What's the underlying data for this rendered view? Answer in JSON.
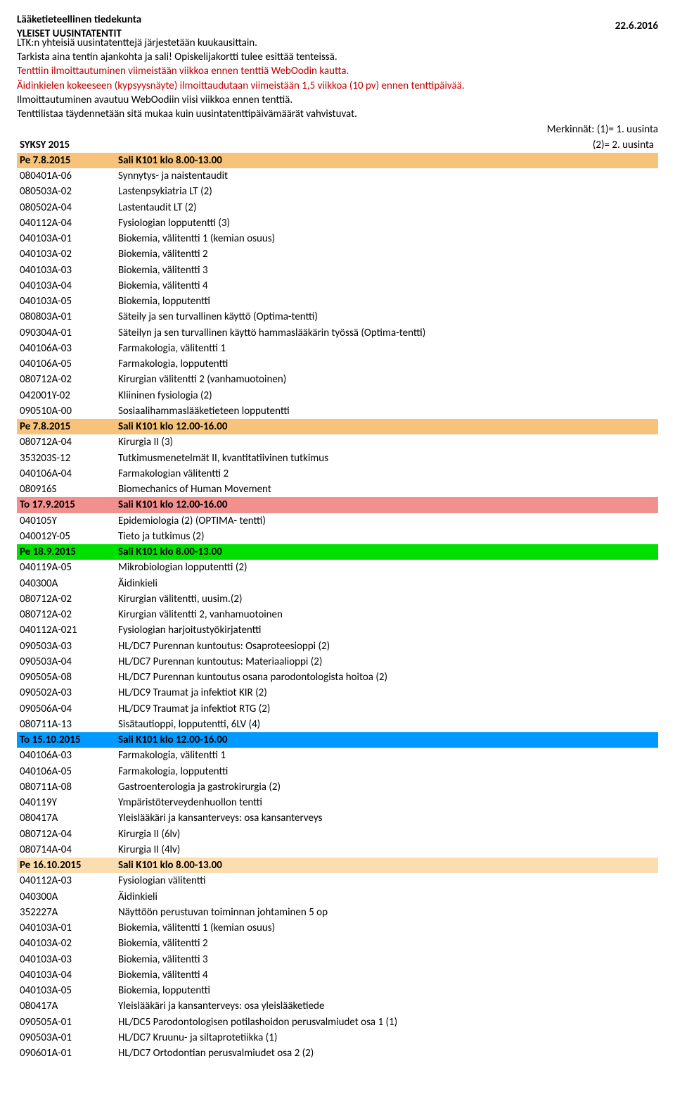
{
  "header": {
    "faculty": "Lääketieteellinen tiedekunta",
    "title": "YLEISET UUSINTATENTIT",
    "date": "22.6.2016",
    "lines": [
      {
        "text": "LTK:n yhteisiä uusintatenttejä järjestetään kuukausittain.",
        "color": "#000000"
      },
      {
        "text": "Tarkista aina tentin ajankohta ja sali! Opiskelijakortti tulee esittää tenteissä.",
        "color": "#000000"
      },
      {
        "text": "Tenttiin ilmoittautuminen viimeistään viikkoa ennen tenttiä WebOodin kautta.",
        "color": "#c00000"
      },
      {
        "text": "Äidinkielen kokeeseen (kypsyysnäyte) ilmoittaudutaan viimeistään 1,5 viikkoa (10 pv) ennen tenttipäivää.",
        "color": "#c00000"
      },
      {
        "text": "Ilmoittautuminen avautuu WebOodiin viisi viikkoa ennen tenttiä.",
        "color": "#000000"
      },
      {
        "text": "Tenttilistaa täydennetään sitä mukaa kuin uusintatenttipäivämäärät vahvistuvat.",
        "color": "#000000"
      }
    ],
    "legend1": "Merkinnät: (1)= 1. uusinta",
    "semester": "SYKSY 2015",
    "legend2": "(2)= 2. uusinta"
  },
  "rows": [
    {
      "type": "section",
      "bg": "bg-orange",
      "date": "Pe 7.8.2015",
      "session": "Sali K101 klo 8.00-13.00"
    },
    {
      "type": "item",
      "code": "080401A-06",
      "desc": "Synnytys- ja naistentaudit"
    },
    {
      "type": "item",
      "code": "080503A-02",
      "desc": "Lastenpsykiatria LT (2)"
    },
    {
      "type": "item",
      "code": "080502A-04",
      "desc": "Lastentaudit LT (2)"
    },
    {
      "type": "item",
      "code": "040112A-04",
      "desc": "Fysiologian lopputentti (3)"
    },
    {
      "type": "item",
      "code": "040103A-01",
      "desc": "Biokemia, välitentti 1 (kemian osuus)"
    },
    {
      "type": "item",
      "code": "040103A-02",
      "desc": "Biokemia, välitentti 2"
    },
    {
      "type": "item",
      "code": "040103A-03",
      "desc": "Biokemia, välitentti 3"
    },
    {
      "type": "item",
      "code": "040103A-04",
      "desc": "Biokemia, välitentti 4"
    },
    {
      "type": "item",
      "code": "040103A-05",
      "desc": "Biokemia, lopputentti"
    },
    {
      "type": "item",
      "code": "080803A-01",
      "desc": "Säteily ja sen  turvallinen käyttö (Optima-tentti)"
    },
    {
      "type": "item",
      "code": "090304A-01",
      "desc": "Säteilyn ja sen turvallinen käyttö hammaslääkärin työssä (Optima-tentti)"
    },
    {
      "type": "item",
      "code": "040106A-03",
      "desc": "Farmakologia, välitentti 1"
    },
    {
      "type": "item",
      "code": "040106A-05",
      "desc": "Farmakologia, lopputentti"
    },
    {
      "type": "item",
      "code": "080712A-02",
      "desc": "Kirurgian välitentti  2 (vanhamuotoinen)"
    },
    {
      "type": "item",
      "code": "042001Y-02",
      "desc": "Kliininen fysiologia (2)"
    },
    {
      "type": "item",
      "code": "090510A-00",
      "desc": "Sosiaalihammaslääketieteen lopputentti"
    },
    {
      "type": "section",
      "bg": "bg-orange",
      "date": "Pe 7.8.2015",
      "session": "Sali K101 klo 12.00-16.00"
    },
    {
      "type": "item",
      "code": "080712A-04",
      "desc": "Kirurgia II (3)"
    },
    {
      "type": "item",
      "code": "353203S-12",
      "desc": "Tutkimusmenetelmät II, kvantitatiivinen tutkimus"
    },
    {
      "type": "item",
      "code": "040106A-04",
      "desc": "Farmakologian välitentti 2"
    },
    {
      "type": "item",
      "code": "080916S",
      "desc": "Biomechanics of Human Movement"
    },
    {
      "type": "section",
      "bg": "bg-salmon",
      "date": "To 17.9.2015",
      "session": "Sali K101 klo 12.00-16.00"
    },
    {
      "type": "item",
      "code": "040105Y",
      "desc": "Epidemiologia (2) (OPTIMA- tentti)"
    },
    {
      "type": "item",
      "code": "040012Y-05",
      "desc": "Tieto ja tutkimus  (2)"
    },
    {
      "type": "section",
      "bg": "bg-green",
      "date": "Pe 18.9.2015",
      "session": "Sali K101 klo 8.00-13.00"
    },
    {
      "type": "item",
      "code": "040119A-05",
      "desc": "Mikrobiologian lopputentti (2)"
    },
    {
      "type": "item",
      "code": "040300A",
      "desc": "Äidinkieli"
    },
    {
      "type": "item",
      "code": "080712A-02",
      "desc": "Kirurgian välitentti, uusim.(2)"
    },
    {
      "type": "item",
      "code": "080712A-02",
      "desc": "Kirurgian välitentti 2, vanhamuotoinen"
    },
    {
      "type": "item",
      "code": "040112A-021",
      "desc": "Fysiologian harjoitustyökirjatentti"
    },
    {
      "type": "item",
      "code": "090503A-03",
      "desc": "HL/DC7 Purennan kuntoutus: Osaproteesioppi (2)"
    },
    {
      "type": "item",
      "code": "090503A-04",
      "desc": "HL/DC7 Purennan kuntoutus: Materiaalioppi (2)"
    },
    {
      "type": "item",
      "code": "090505A-08",
      "desc": "HL/DC7 Purennan kuntoutus osana parodontologista hoitoa (2)"
    },
    {
      "type": "item",
      "code": "090502A-03",
      "desc": "HL/DC9 Traumat ja infektiot KIR (2)"
    },
    {
      "type": "item",
      "code": "090506A-04",
      "desc": "HL/DC9 Traumat ja infektiot RTG (2)"
    },
    {
      "type": "item",
      "code": "080711A-13",
      "desc": "Sisätautioppi, lopputentti, 6LV (4)"
    },
    {
      "type": "section",
      "bg": "bg-blue",
      "date": "To 15.10.2015",
      "session": "Sali K101 klo 12.00-16.00"
    },
    {
      "type": "item",
      "code": "040106A-03",
      "desc": "Farmakologia, välitentti 1"
    },
    {
      "type": "item",
      "code": "040106A-05",
      "desc": "Farmakologia, lopputentti"
    },
    {
      "type": "item",
      "code": "080711A-08",
      "desc": "Gastroenterologia ja gastrokirurgia (2)"
    },
    {
      "type": "item",
      "code": "040119Y",
      "desc": "Ympäristöterveydenhuollon tentti"
    },
    {
      "type": "item",
      "code": "080417A",
      "desc": "Yleislääkäri ja kansanterveys: osa kansanterveys"
    },
    {
      "type": "item",
      "code": "080712A-04",
      "desc": "Kirurgia II (6lv)"
    },
    {
      "type": "item",
      "code": "080714A-04",
      "desc": "Kirurgia II (4lv)"
    },
    {
      "type": "section",
      "bg": "bg-ltorange",
      "date": "Pe 16.10.2015",
      "session": "Sali K101 klo 8.00-13.00"
    },
    {
      "type": "item",
      "code": "040112A-03",
      "desc": "Fysiologian välitentti"
    },
    {
      "type": "item",
      "code": "040300A",
      "desc": "Äidinkieli"
    },
    {
      "type": "item",
      "code": "352227A",
      "desc": "Näyttöön perustuvan toiminnan johtaminen 5 op"
    },
    {
      "type": "item",
      "code": "040103A-01",
      "desc": "Biokemia, välitentti 1 (kemian osuus)"
    },
    {
      "type": "item",
      "code": "040103A-02",
      "desc": "Biokemia, välitentti 2"
    },
    {
      "type": "item",
      "code": "040103A-03",
      "desc": "Biokemia, välitentti 3"
    },
    {
      "type": "item",
      "code": "040103A-04",
      "desc": "Biokemia, välitentti 4"
    },
    {
      "type": "item",
      "code": "040103A-05",
      "desc": "Biokemia, lopputentti"
    },
    {
      "type": "item",
      "code": "080417A",
      "desc": "Yleislääkäri ja kansanterveys: osa yleislääketiede"
    },
    {
      "type": "item",
      "code": "090505A-01",
      "desc": "HL/DC5 Parodontologisen potilashoidon perusvalmiudet osa 1 (1)"
    },
    {
      "type": "item",
      "code": "090503A-01",
      "desc": "HL/DC7 Kruunu- ja siltaprotetiikka (1)"
    },
    {
      "type": "item",
      "code": "090601A-01",
      "desc": "HL/DC7 Ortodontian perusvalmiudet osa 2 (2)"
    }
  ]
}
